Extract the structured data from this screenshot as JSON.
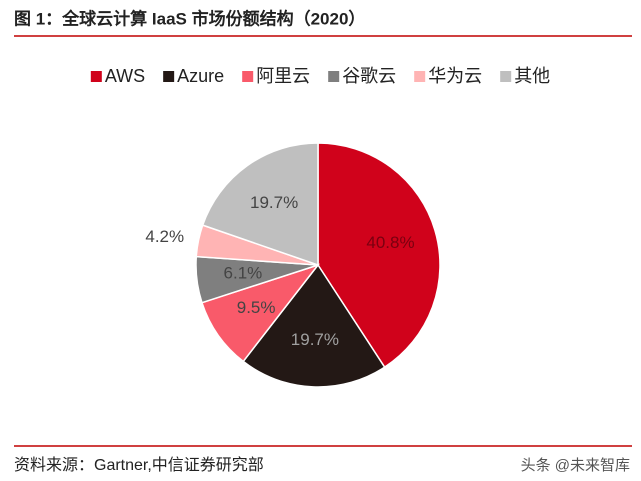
{
  "chart_data": {
    "type": "pie",
    "title": "图 1：全球云计算 IaaS 市场份额结构（2020）",
    "legend_position": "top",
    "categories": [
      "AWS",
      "Azure",
      "阿里云",
      "谷歌云",
      "华为云",
      "其他"
    ],
    "values": [
      40.8,
      19.7,
      9.5,
      6.1,
      4.2,
      19.7
    ],
    "value_labels": [
      "40.8%",
      "19.7%",
      "9.5%",
      "6.1%",
      "4.2%",
      "19.7%"
    ],
    "colors": [
      "#d0021b",
      "#231815",
      "#f95a6a",
      "#7f7f7f",
      "#ffb4b4",
      "#bfbfbf"
    ],
    "source": "资料来源：Gartner,中信证券研究部"
  },
  "watermark": "头条 @未来智库"
}
